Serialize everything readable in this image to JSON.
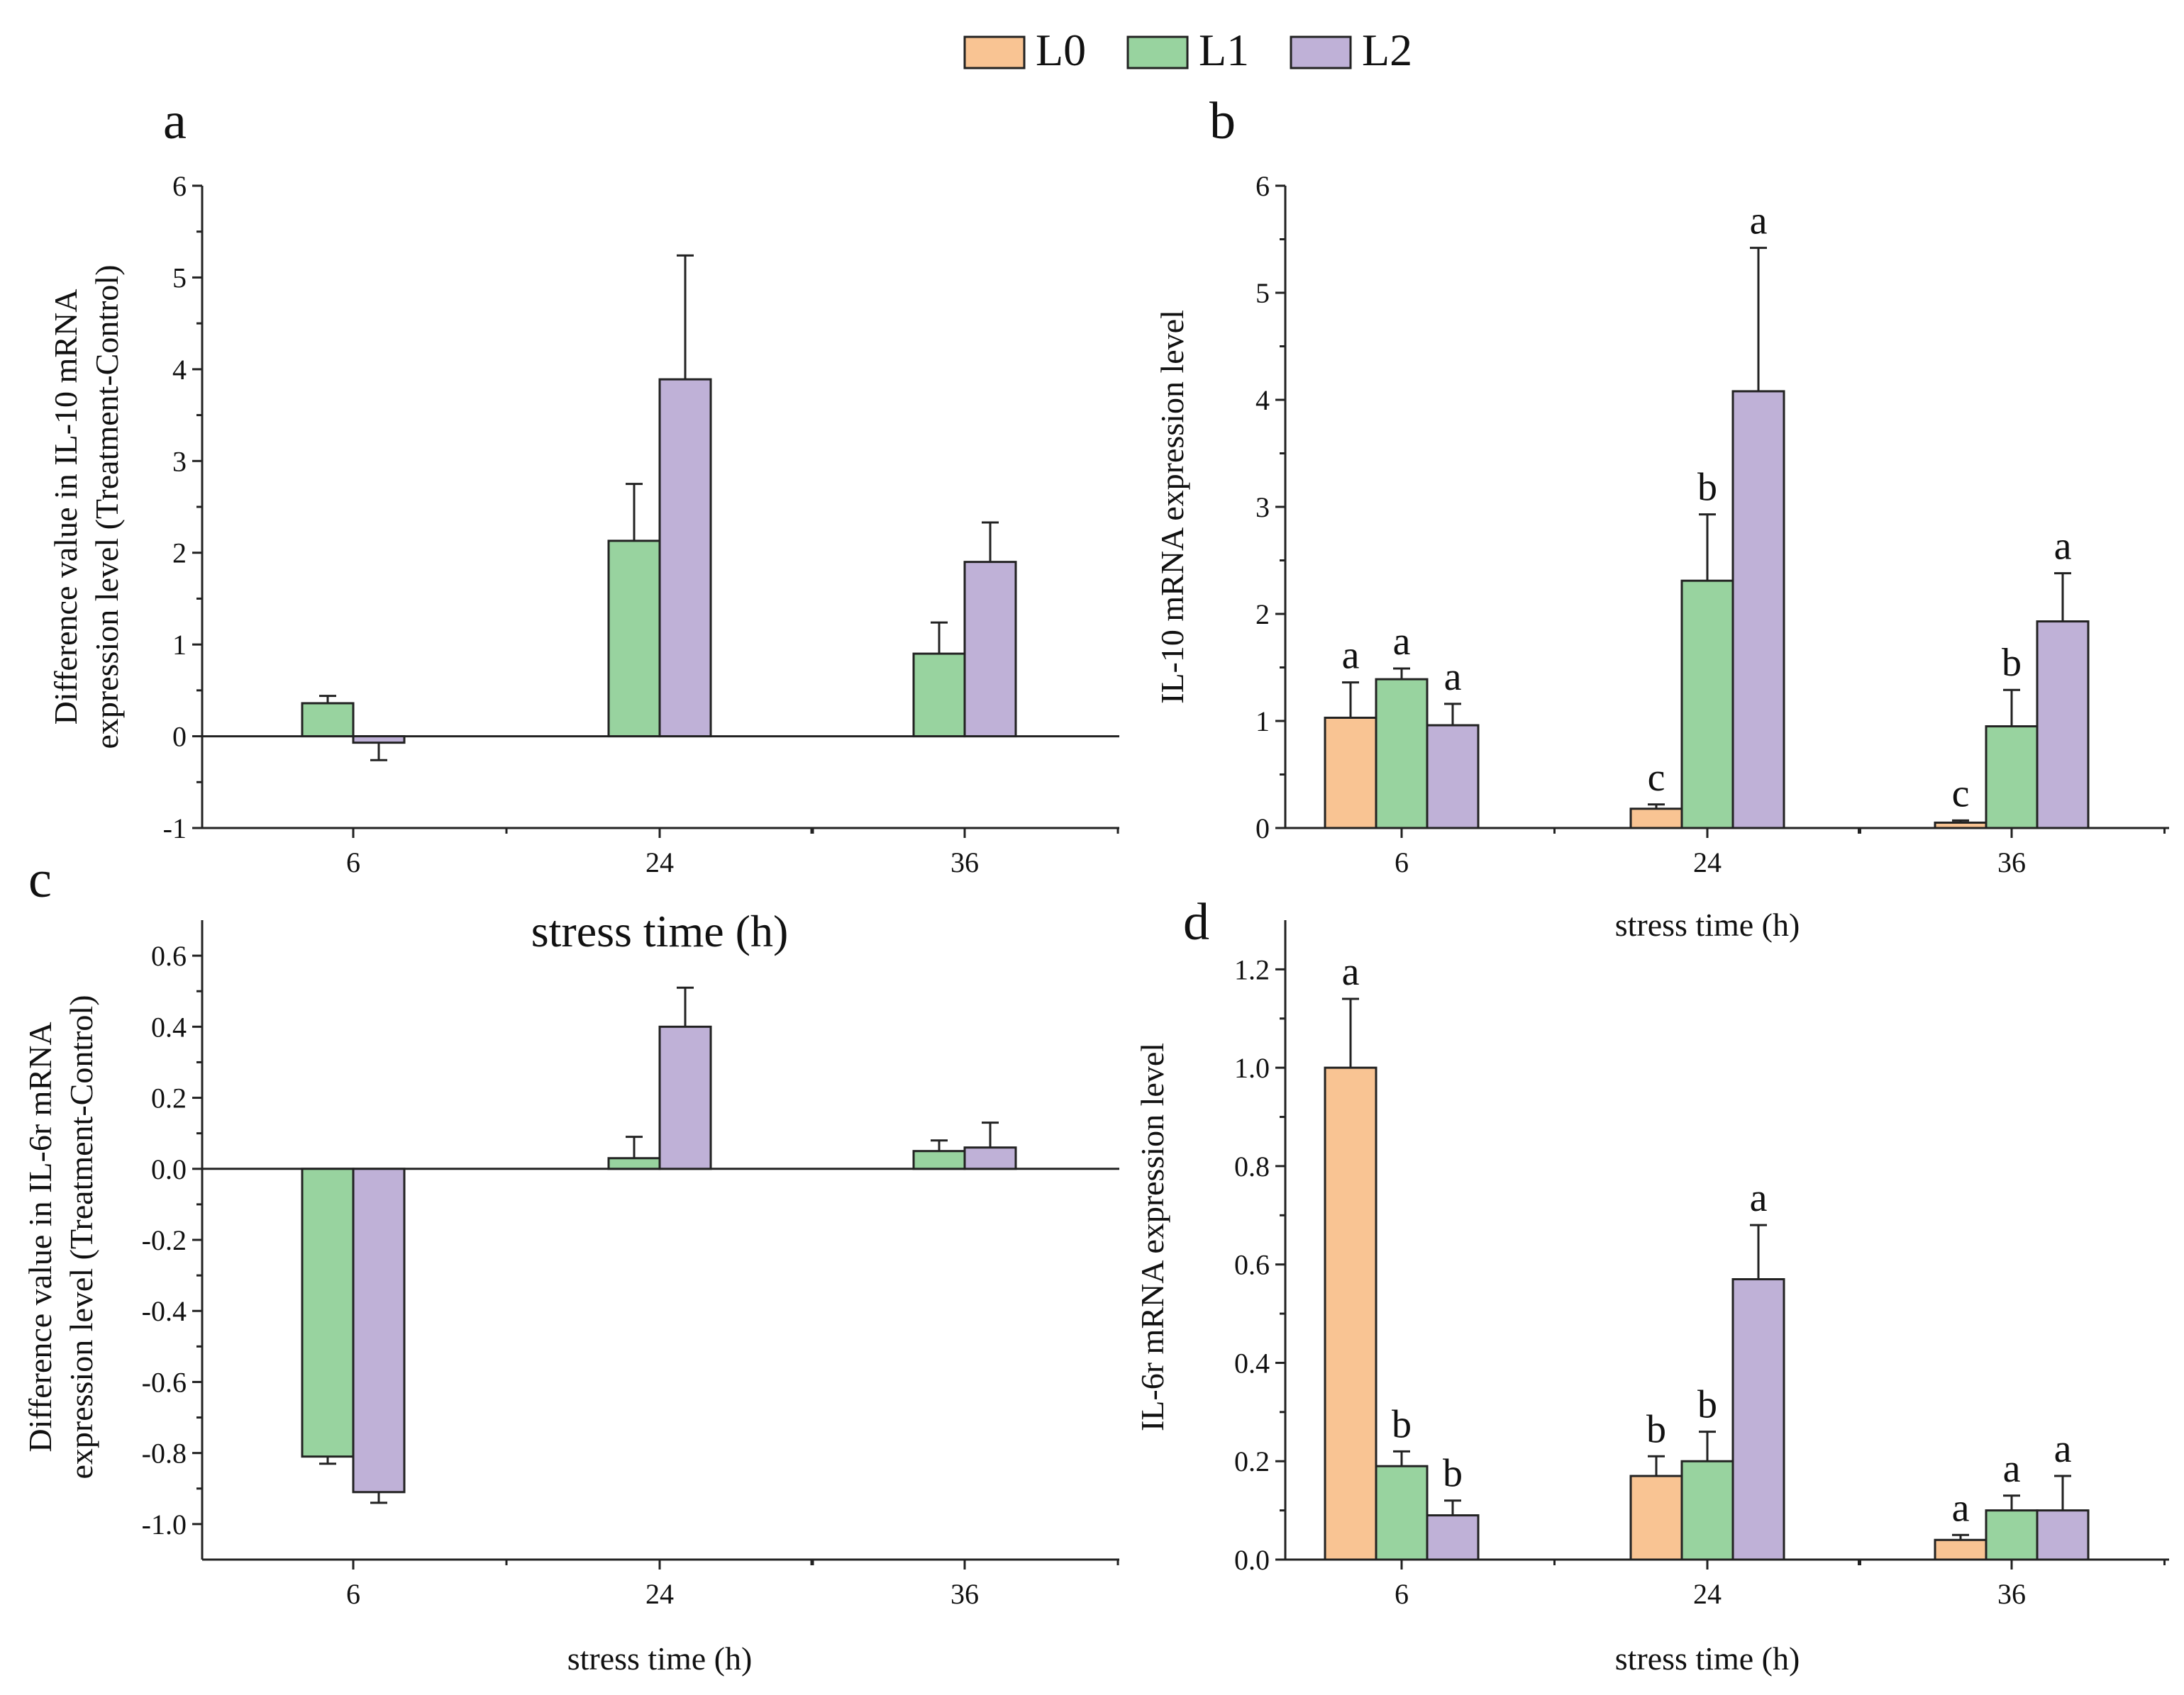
{
  "colors": {
    "L0": "#f9c493",
    "L1": "#98d39f",
    "L2": "#bfb1d7"
  },
  "legend": [
    "L0",
    "L1",
    "L2"
  ],
  "chart_data": [
    {
      "id": "a",
      "panel_letter": "a",
      "type": "bar",
      "title": "",
      "xlabel": "stress time (h)",
      "ylabel_lines": [
        "Difference value in IL-10 mRNA",
        "expression level (Treatment-Control)"
      ],
      "categories": [
        "6",
        "24",
        "36"
      ],
      "ylim": [
        -1,
        6
      ],
      "yticks": [
        -1,
        0,
        1,
        2,
        3,
        4,
        5,
        6
      ],
      "ytick_labels": [
        "-1",
        "0",
        "1",
        "2",
        "3",
        "4",
        "5",
        "6"
      ],
      "series": [
        {
          "name": "L1",
          "values": [
            0.36,
            2.13,
            0.9
          ],
          "errors": [
            0.08,
            0.62,
            0.34
          ],
          "labels": [
            "",
            "",
            ""
          ]
        },
        {
          "name": "L2",
          "values": [
            -0.07,
            3.89,
            1.9
          ],
          "errors": [
            0.19,
            1.35,
            0.43
          ],
          "labels": [
            "",
            "",
            ""
          ]
        }
      ]
    },
    {
      "id": "b",
      "panel_letter": "b",
      "type": "bar",
      "title": "",
      "xlabel": "stress time (h)",
      "ylabel_lines": [
        "IL-10 mRNA expression level"
      ],
      "categories": [
        "6",
        "24",
        "36"
      ],
      "ylim": [
        0,
        6
      ],
      "yticks": [
        0,
        1,
        2,
        3,
        4,
        5,
        6
      ],
      "ytick_labels": [
        "0",
        "1",
        "2",
        "3",
        "4",
        "5",
        "6"
      ],
      "series": [
        {
          "name": "L0",
          "values": [
            1.03,
            0.18,
            0.05
          ],
          "errors": [
            0.33,
            0.04,
            0.02
          ],
          "labels": [
            "a",
            "c",
            "c"
          ]
        },
        {
          "name": "L1",
          "values": [
            1.39,
            2.31,
            0.95
          ],
          "errors": [
            0.1,
            0.62,
            0.34
          ],
          "labels": [
            "a",
            "b",
            "b"
          ]
        },
        {
          "name": "L2",
          "values": [
            0.96,
            4.08,
            1.93
          ],
          "errors": [
            0.2,
            1.34,
            0.45
          ],
          "labels": [
            "a",
            "a",
            "a"
          ]
        }
      ]
    },
    {
      "id": "c",
      "panel_letter": "c",
      "type": "bar",
      "title": "",
      "xlabel": "stress time (h)",
      "ylabel_lines": [
        "Difference value in IL-6r mRNA",
        "expression level (Treatment-Control)"
      ],
      "categories": [
        "6",
        "24",
        "36"
      ],
      "ylim": [
        -1.1,
        0.7
      ],
      "yticks": [
        -1.0,
        -0.8,
        -0.6,
        -0.4,
        -0.2,
        0.0,
        0.2,
        0.4,
        0.6
      ],
      "ytick_labels": [
        "-1.0",
        "-0.8",
        "-0.6",
        "-0.4",
        "-0.2",
        "0.0",
        "0.2",
        "0.4",
        "0.6"
      ],
      "series": [
        {
          "name": "L1",
          "values": [
            -0.81,
            0.03,
            0.05
          ],
          "errors": [
            0.02,
            0.06,
            0.03
          ],
          "labels": [
            "",
            "",
            ""
          ]
        },
        {
          "name": "L2",
          "values": [
            -0.91,
            0.4,
            0.06
          ],
          "errors": [
            0.03,
            0.11,
            0.07
          ],
          "labels": [
            "",
            "",
            ""
          ]
        }
      ]
    },
    {
      "id": "d",
      "panel_letter": "d",
      "type": "bar",
      "title": "",
      "xlabel": "stress time (h)",
      "ylabel_lines": [
        "IL-6r mRNA expression level"
      ],
      "categories": [
        "6",
        "24",
        "36"
      ],
      "ylim": [
        0,
        1.3
      ],
      "yticks": [
        0.0,
        0.2,
        0.4,
        0.6,
        0.8,
        1.0,
        1.2
      ],
      "ytick_labels": [
        "0.0",
        "0.2",
        "0.4",
        "0.6",
        "0.8",
        "1.0",
        "1.2"
      ],
      "series": [
        {
          "name": "L0",
          "values": [
            1.0,
            0.17,
            0.04
          ],
          "errors": [
            0.14,
            0.04,
            0.01
          ],
          "labels": [
            "a",
            "b",
            "a"
          ]
        },
        {
          "name": "L1",
          "values": [
            0.19,
            0.2,
            0.1
          ],
          "errors": [
            0.03,
            0.06,
            0.03
          ],
          "labels": [
            "b",
            "b",
            "a"
          ]
        },
        {
          "name": "L2",
          "values": [
            0.09,
            0.57,
            0.1
          ],
          "errors": [
            0.03,
            0.11,
            0.07
          ],
          "labels": [
            "b",
            "a",
            "a"
          ]
        }
      ]
    }
  ]
}
